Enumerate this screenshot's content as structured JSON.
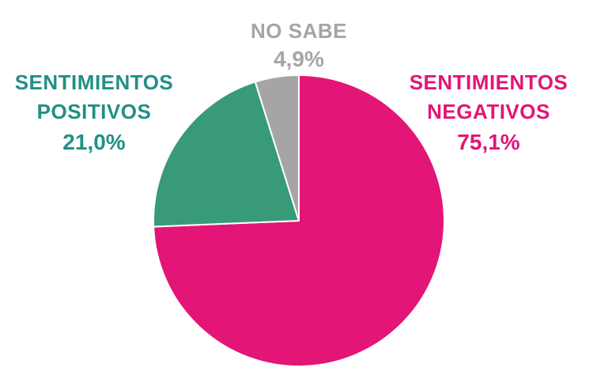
{
  "chart_data": {
    "type": "pie",
    "slices": [
      {
        "label_lines": [
          "SENTIMIENTOS",
          "NEGATIVOS"
        ],
        "value": 75.1,
        "value_label": "75,1%",
        "color": "#e31576"
      },
      {
        "label_lines": [
          "SENTIMIENTOS",
          "POSITIVOS"
        ],
        "value": 21.0,
        "value_label": "21,0%",
        "color": "#389a78"
      },
      {
        "label_lines": [
          "NO SABE"
        ],
        "value": 4.9,
        "value_label": "4,9%",
        "color": "#a5a5a5"
      }
    ],
    "label_colors": {
      "negativos": "#e31576",
      "positivos": "#228f86",
      "no_sabe": "#a5a5a5"
    },
    "start_angle": "12 o'clock",
    "direction": "clockwise",
    "legend": "none"
  }
}
